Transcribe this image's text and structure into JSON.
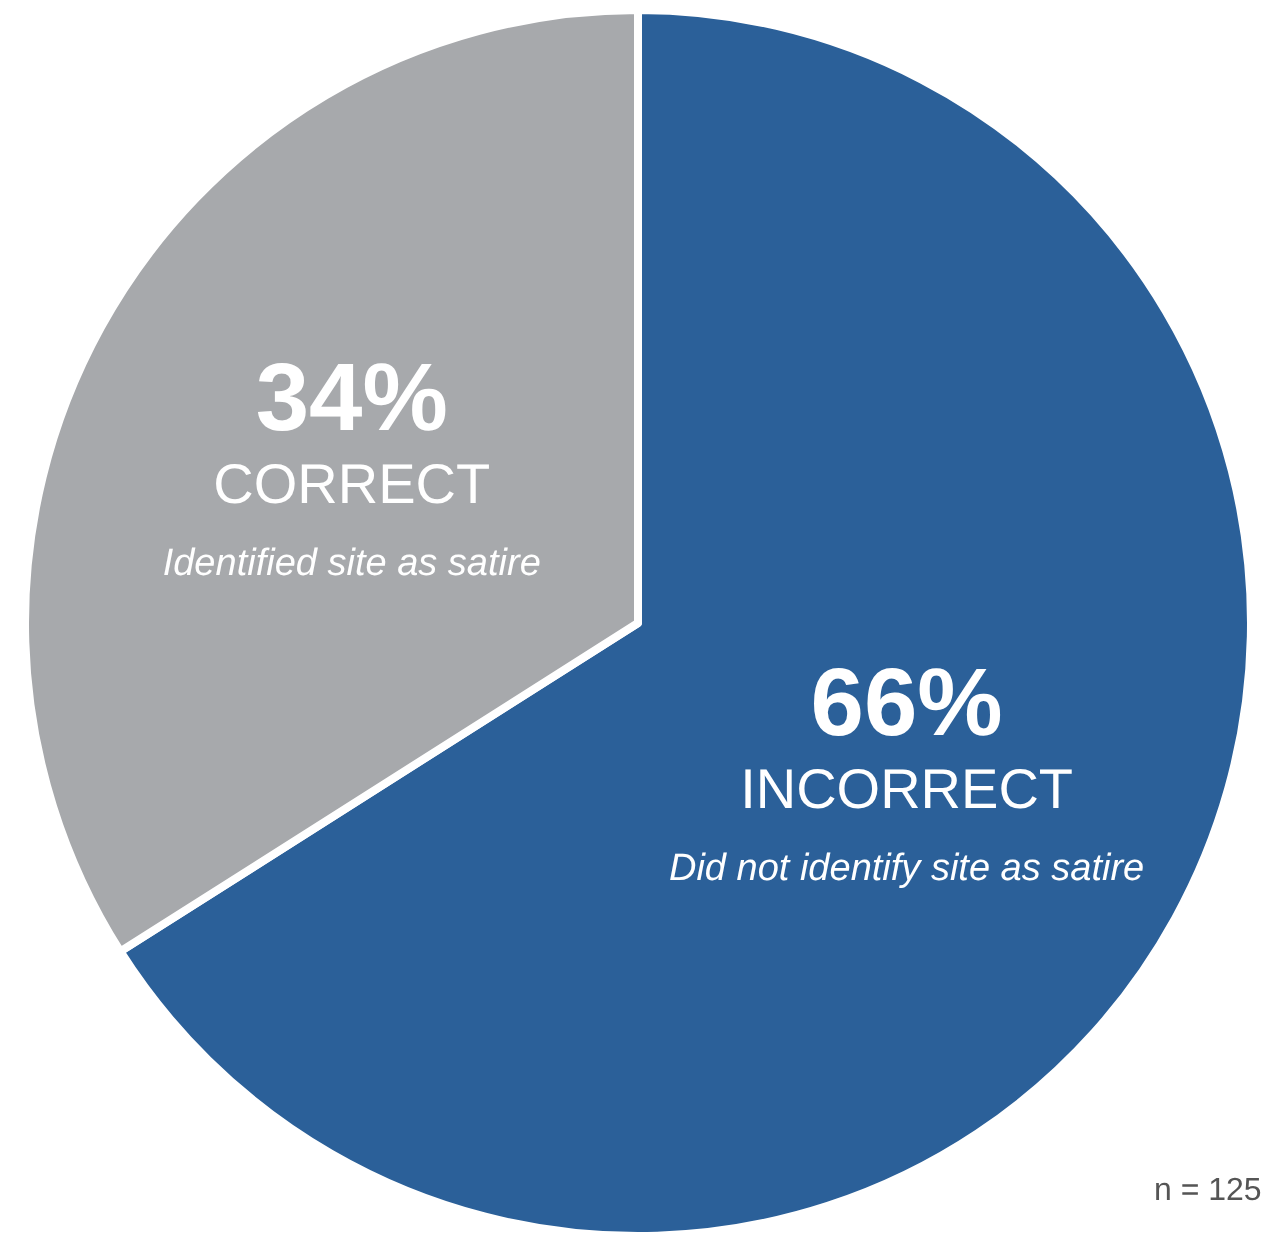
{
  "chart_data": {
    "type": "pie",
    "categories": [
      "INCORRECT",
      "CORRECT"
    ],
    "values": [
      66,
      34
    ],
    "colors": [
      "#2b6099",
      "#a7a9ac"
    ],
    "value_labels": [
      "66%",
      "34%"
    ],
    "annotations": [
      "Did not identify site as satire",
      "Identified site as satire",
      "n = 125"
    ],
    "legend": false
  }
}
